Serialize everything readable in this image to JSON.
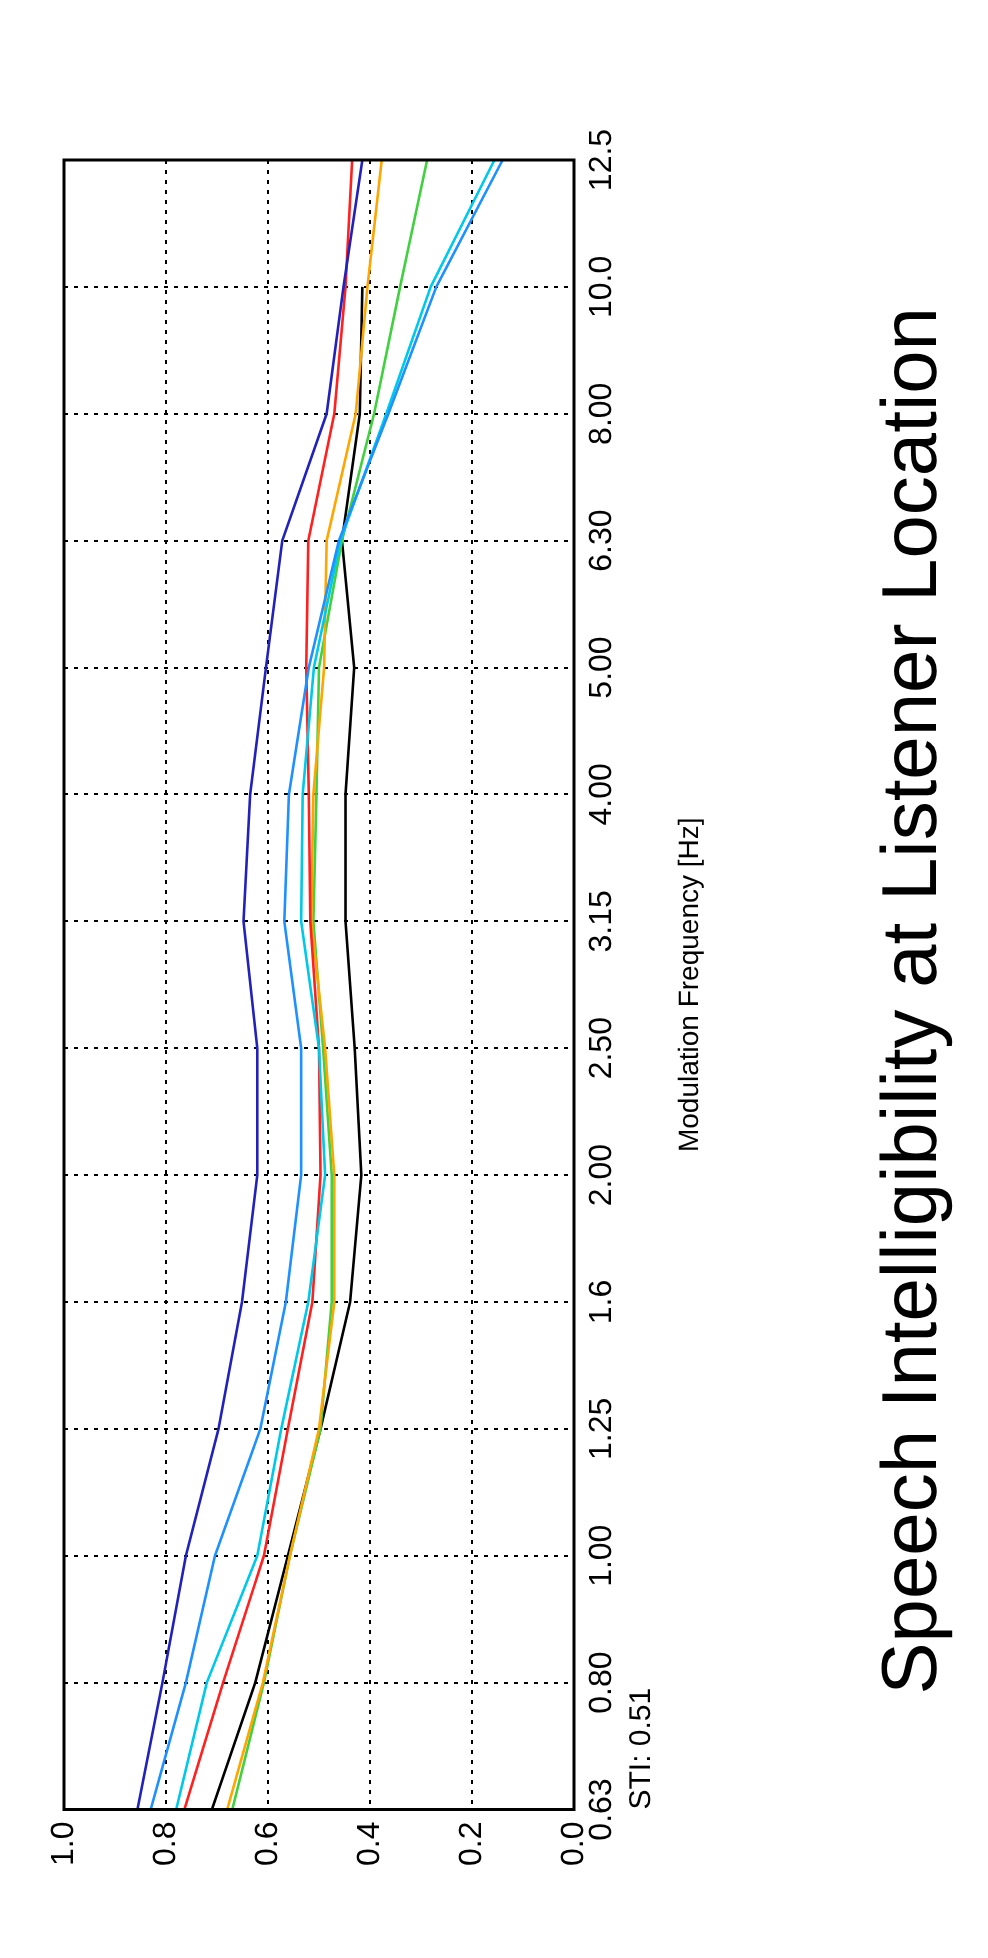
{
  "chart_data": {
    "type": "line",
    "orientation": "horizontal",
    "title": "Speech Intelligibility at Listener Location",
    "ylabel": "Modulation Frequency [Hz]",
    "categories": [
      "12.5",
      "10.0",
      "8.00",
      "6.30",
      "5.00",
      "4.00",
      "3.15",
      "2.50",
      "2.00",
      "1.6",
      "1.25",
      "1.00",
      "0.80",
      "0.63"
    ],
    "series": [
      {
        "color": "#2222bb",
        "values": [
          0.415,
          0.452,
          0.485,
          0.572,
          0.604,
          0.635,
          0.648,
          0.621,
          0.621,
          0.651,
          0.697,
          0.761,
          0.807,
          0.856
        ]
      },
      {
        "color": "#1e90ff",
        "values": [
          0.14,
          0.27,
          0.364,
          0.461,
          0.52,
          0.559,
          0.568,
          0.535,
          0.535,
          0.565,
          0.615,
          0.704,
          0.761,
          0.83
        ]
      },
      {
        "color": "#00c8e8",
        "values": [
          0.156,
          0.281,
          0.368,
          0.458,
          0.51,
          0.532,
          0.535,
          0.5,
          0.488,
          0.521,
          0.574,
          0.621,
          0.72,
          0.78
        ]
      },
      {
        "color": "#ff2020",
        "values": [
          0.435,
          0.448,
          0.47,
          0.521,
          0.525,
          0.52,
          0.517,
          0.5,
          0.497,
          0.513,
          0.561,
          0.608,
          0.688,
          0.764
        ]
      },
      {
        "color": "#ffa500",
        "values": [
          0.377,
          0.405,
          0.428,
          0.485,
          0.49,
          0.511,
          0.515,
          0.488,
          0.47,
          0.47,
          0.5,
          0.557,
          0.61,
          0.68
        ]
      },
      {
        "color": "#40d040",
        "values": [
          0.288,
          0.341,
          0.392,
          0.455,
          0.5,
          0.505,
          0.511,
          0.492,
          0.475,
          0.475,
          0.497,
          0.557,
          0.608,
          0.67
        ]
      },
      {
        "color": "#000000",
        "values": [
          null,
          0.415,
          0.42,
          0.455,
          0.431,
          0.448,
          0.448,
          0.43,
          0.417,
          0.439,
          0.497,
          0.561,
          0.625,
          0.71
        ]
      }
    ],
    "xlim": [
      1,
      0
    ],
    "xticks": [
      {
        "value": 1,
        "label": "1.0"
      },
      {
        "value": 0.8,
        "label": "0.8"
      },
      {
        "value": 0.6,
        "label": "0.6"
      },
      {
        "value": 0.4,
        "label": "0.4"
      },
      {
        "value": 0.2,
        "label": "0.2"
      },
      {
        "value": 0,
        "label": "0.0"
      }
    ],
    "grid": true,
    "legend": false,
    "marker": "none",
    "line_style": "solid",
    "annotations": [
      "STI: 0.51"
    ]
  }
}
